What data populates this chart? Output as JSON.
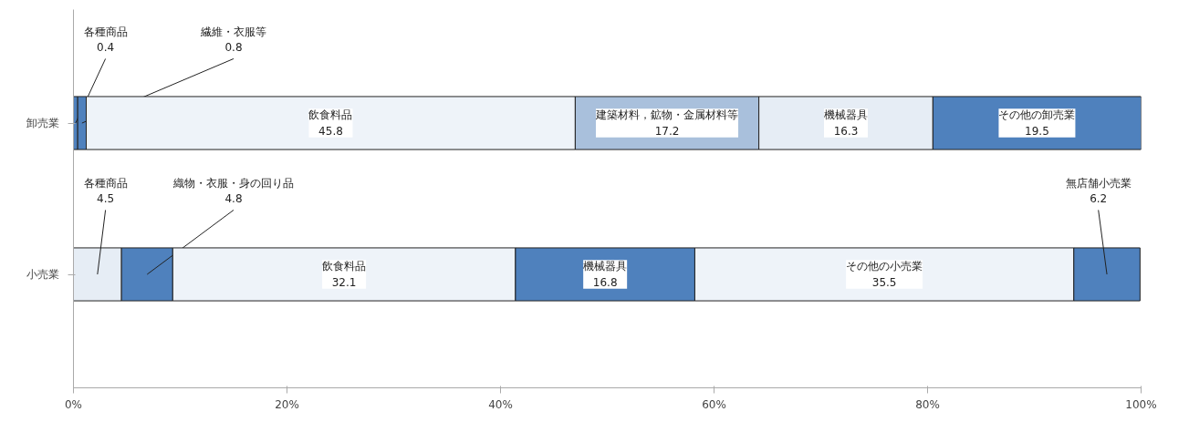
{
  "chart_data": {
    "type": "bar",
    "orientation": "horizontal",
    "stacked": true,
    "categories": [
      "卸売業",
      "小売業"
    ],
    "xlim": [
      0,
      100
    ],
    "xticks": [
      {
        "value": 0,
        "label": "0%"
      },
      {
        "value": 20,
        "label": "20%"
      },
      {
        "value": 40,
        "label": "40%"
      },
      {
        "value": 60,
        "label": "60%"
      },
      {
        "value": 80,
        "label": "80%"
      },
      {
        "value": 100,
        "label": "100%"
      }
    ],
    "grid": false,
    "series": [
      {
        "values": [
          0.4,
          4.5
        ],
        "colors": [
          "#4f81bd",
          "#e6edf5"
        ],
        "value_labels": [
          "各種商品\n0.4",
          "各種商品\n4.5"
        ]
      },
      {
        "values": [
          0.8,
          4.8
        ],
        "colors": [
          "#4f81bd",
          "#4f81bd"
        ],
        "value_labels": [
          "繊維・衣服等\n0.8",
          "織物・衣服・身の回り品\n4.8"
        ]
      },
      {
        "values": [
          45.8,
          32.1
        ],
        "colors": [
          "#eef3f9",
          "#eef3f9"
        ],
        "value_labels": [
          "飲食料品\n45.8",
          "飲食料品\n32.1"
        ]
      },
      {
        "values": [
          17.2,
          16.8
        ],
        "colors": [
          "#a9c0dc",
          "#4f81bd"
        ],
        "value_labels": [
          "建築材料，鉱物・金属材料等\n17.2",
          "機械器具\n16.8"
        ]
      },
      {
        "values": [
          16.3,
          35.5
        ],
        "colors": [
          "#e6edf5",
          "#eef3f9"
        ],
        "value_labels": [
          "機械器具\n16.3",
          "その他の小売業\n35.5"
        ]
      },
      {
        "values": [
          19.5,
          6.2
        ],
        "colors": [
          "#4f81bd",
          "#4f81bd"
        ],
        "value_labels": [
          "その他の卸売業\n19.5",
          "無店舗小売業\n6.2"
        ]
      }
    ]
  }
}
